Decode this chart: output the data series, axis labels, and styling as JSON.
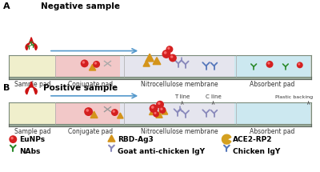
{
  "bg_color": "#ffffff",
  "panel_A_title": "Negative sample",
  "panel_B_title": "Positive sample",
  "label_A": "A",
  "label_B": "B",
  "sample_pad_color": "#f0efcc",
  "conjugate_pad_color": "#f2c8c8",
  "nitro_membrane_color": "#e5e5ee",
  "absorbent_pad_color": "#cce8f0",
  "strip_edge_color": "#7a8a7a",
  "strip_face_color": "#9aaa9a",
  "T_line_label": "T line",
  "C_line_label": "C line",
  "plastic_backing_label": "Plastic backing",
  "sample_pad_label": "Sample pad",
  "conjugate_pad_label": "Conjugate pad",
  "nitro_label": "Nitrocellulose membrane",
  "absorbent_label": "Absorbent pad",
  "eunp_color": "#d42020",
  "rbd_color": "#d4941a",
  "ace2_color": "#d4a020",
  "nabs_color": "#2a8a2a",
  "goat_color": "#8888bb",
  "chicken_color": "#5577bb",
  "arrow_color": "#5599cc",
  "legend_items": [
    {
      "label": "EuNPs",
      "type": "circle",
      "color": "#d42020"
    },
    {
      "label": "NAbs",
      "type": "Y",
      "color": "#2a8a2a"
    },
    {
      "label": "RBD-Ag3",
      "type": "triangle",
      "color": "#d4941a"
    },
    {
      "label": "Goat anti-chicken IgY",
      "type": "Y",
      "color": "#8888bb"
    },
    {
      "label": "ACE2-RP2",
      "type": "pac",
      "color": "#d4a020"
    },
    {
      "label": "Chicken IgY",
      "type": "Y",
      "color": "#5577bb"
    }
  ]
}
